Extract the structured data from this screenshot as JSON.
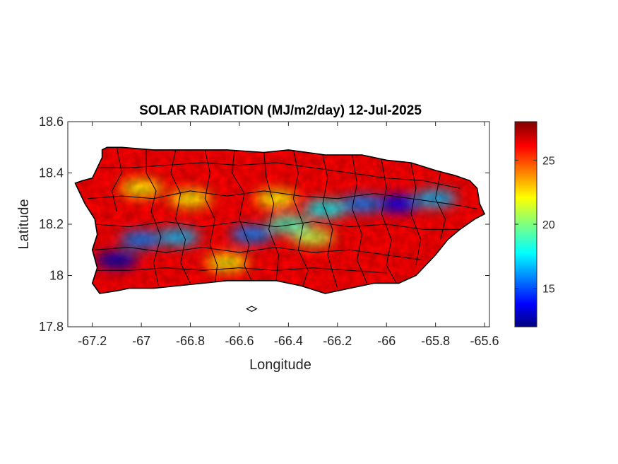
{
  "chart_data": {
    "type": "heatmap",
    "title": "SOLAR RADIATION (MJ/m2/day) 12-Jul-2025",
    "xlabel": "Longitude",
    "ylabel": "Latitude",
    "xlim": [
      -67.3,
      -65.58
    ],
    "ylim": [
      17.8,
      18.6
    ],
    "xticks": [
      -67.2,
      -67,
      -66.8,
      -66.6,
      -66.4,
      -66.2,
      -66,
      -65.8,
      -65.6
    ],
    "xtick_labels": [
      "-67.2",
      "-67",
      "-66.8",
      "-66.6",
      "-66.4",
      "-66.2",
      "-66",
      "-65.8",
      "-65.6"
    ],
    "yticks": [
      17.8,
      18,
      18.2,
      18.4,
      18.6
    ],
    "ytick_labels": [
      "17.8",
      "18",
      "18.2",
      "18.4",
      "18.6"
    ],
    "colorbar": {
      "colormap": "jet",
      "range": [
        12,
        28
      ],
      "ticks": [
        15,
        20,
        25
      ],
      "tick_labels": [
        "15",
        "20",
        "25"
      ]
    },
    "region": "Puerto Rico (municipality boundaries)",
    "grid": false,
    "value_hotspots": [
      {
        "lon": -67.1,
        "lat": 18.06,
        "value": 13
      },
      {
        "lon": -67.0,
        "lat": 18.14,
        "value": 16
      },
      {
        "lon": -66.85,
        "lat": 18.15,
        "value": 17
      },
      {
        "lon": -66.55,
        "lat": 18.16,
        "value": 16
      },
      {
        "lon": -66.4,
        "lat": 18.2,
        "value": 19
      },
      {
        "lon": -66.25,
        "lat": 18.26,
        "value": 18
      },
      {
        "lon": -66.1,
        "lat": 18.28,
        "value": 16
      },
      {
        "lon": -65.95,
        "lat": 18.28,
        "value": 14
      },
      {
        "lon": -65.8,
        "lat": 18.3,
        "value": 17
      },
      {
        "lon": -66.3,
        "lat": 18.15,
        "value": 21
      },
      {
        "lon": -66.8,
        "lat": 18.3,
        "value": 22
      },
      {
        "lon": -67.0,
        "lat": 18.34,
        "value": 22
      },
      {
        "lon": -66.65,
        "lat": 18.05,
        "value": 22
      },
      {
        "lon": -66.45,
        "lat": 18.3,
        "value": 22
      }
    ],
    "background_value": 26
  }
}
